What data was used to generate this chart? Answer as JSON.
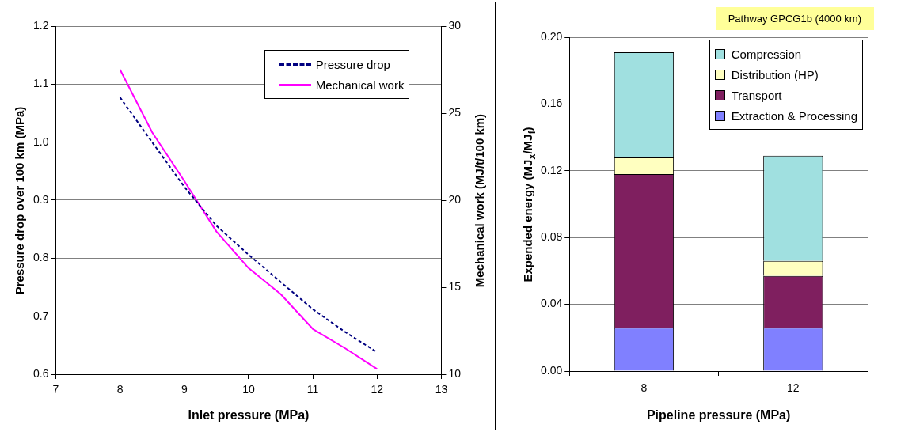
{
  "chart_data": [
    {
      "type": "line",
      "xlabel": "Inlet pressure (MPa)",
      "ylabel": "Pressure drop over 100 km (MPa)",
      "y2label": "Mechanical work (MJ/t/100 km)",
      "xlim": [
        7,
        13
      ],
      "xticks": [
        7,
        8,
        9,
        10,
        11,
        12,
        13
      ],
      "ylim": [
        0.6,
        1.2
      ],
      "yticks": [
        0.6,
        0.7,
        0.8,
        0.9,
        {
          "value": 1,
          "label": "1.0"
        },
        1.1,
        1.2
      ],
      "y2lim": [
        10,
        30
      ],
      "y2ticks": [
        10,
        15,
        20,
        25,
        30
      ],
      "x": [
        8,
        8.5,
        9,
        9.5,
        10,
        10.5,
        11,
        11.5,
        12
      ],
      "series": [
        {
          "name": "Pressure drop",
          "color": "#000080",
          "line_style": "dashed",
          "values": [
            1.077,
            1.0,
            0.923,
            0.856,
            0.806,
            0.759,
            0.712,
            0.673,
            0.638
          ]
        },
        {
          "name": "Mechanical work",
          "color": "#ff00ff",
          "axis": "y2",
          "line_style": "solid",
          "values": [
            27.5,
            23.9,
            21.1,
            18.2,
            16.1,
            14.6,
            12.6,
            11.5,
            10.3
          ]
        }
      ],
      "grid": "y",
      "legend": "top right",
      "marker": "none"
    },
    {
      "type": "bar",
      "xlabel": "Pipeline pressure (MPa)",
      "ylabel": "Expended energy (MJ$_{x}$/MJ$_{f}$)",
      "categories": [
        "8",
        "12"
      ],
      "stacked": true,
      "ylim": [
        0,
        0.2
      ],
      "yticks": [
        {
          "value": 0,
          "label": "0.00"
        },
        {
          "value": 0.04,
          "label": "0.04"
        },
        {
          "value": 0.08,
          "label": "0.08"
        },
        {
          "value": 0.12,
          "label": "0.12"
        },
        {
          "value": 0.16,
          "label": "0.16"
        },
        {
          "value": 0.2,
          "label": "0.20"
        }
      ],
      "series": [
        {
          "name": "Extraction & Processing",
          "color": "#8080ff",
          "values": [
            0.026,
            0.026
          ]
        },
        {
          "name": "Transport",
          "color": "#7f1f5f",
          "values": [
            0.092,
            0.031
          ]
        },
        {
          "name": "Distribution (HP)",
          "color": "#ffffc0",
          "values": [
            0.01,
            0.009
          ]
        },
        {
          "name": "Compression",
          "color": "#a0e0e0",
          "values": [
            0.063,
            0.063
          ]
        }
      ],
      "annotations": [
        "Pathway GPCG1b (4000 km)"
      ],
      "grid": "y",
      "legend": "top right"
    }
  ]
}
